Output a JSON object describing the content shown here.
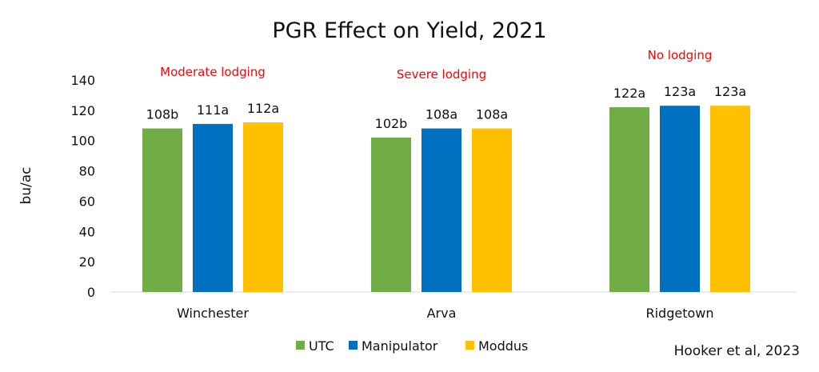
{
  "chart_data": {
    "type": "bar",
    "title": "PGR Effect on Yield, 2021",
    "xlabel": "",
    "ylabel": "bu/ac",
    "ylim": [
      0,
      140
    ],
    "yticks": [
      0,
      20,
      40,
      60,
      80,
      100,
      120,
      140
    ],
    "grid": false,
    "legend_position": "bottom",
    "categories": [
      "Winchester",
      "Arva",
      "Ridgetown"
    ],
    "category_notes": [
      "Moderate lodging",
      "Severe lodging",
      "No lodging"
    ],
    "note_color": "#ff0000",
    "series": [
      {
        "name": "UTC",
        "color": "#70ad47",
        "values": [
          108,
          102,
          122
        ],
        "labels": [
          "108b",
          "102b",
          "122a"
        ]
      },
      {
        "name": "Manipulator",
        "color": "#0070c0",
        "values": [
          111,
          108,
          123
        ],
        "labels": [
          "111a",
          "108a",
          "123a"
        ]
      },
      {
        "name": "Moddus",
        "color": "#ffc000",
        "values": [
          112,
          108,
          123
        ],
        "labels": [
          "112a",
          "108a",
          "123a"
        ]
      }
    ]
  },
  "citation": "Hooker et al, 2023"
}
